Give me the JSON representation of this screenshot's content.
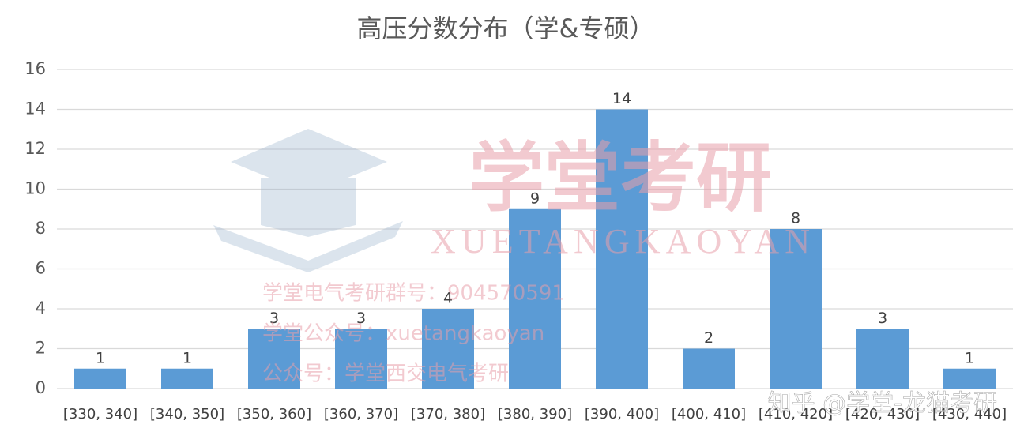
{
  "chart_data": {
    "type": "bar",
    "title": "高压分数分布（学&专硕）",
    "categories": [
      "[330, 340]",
      "[340, 350]",
      "[350, 360]",
      "[360, 370]",
      "[370, 380]",
      "[380, 390]",
      "[390, 400]",
      "[400, 410]",
      "[410, 420]",
      "[420, 430]",
      "[430, 440]"
    ],
    "values": [
      1,
      1,
      3,
      3,
      4,
      9,
      14,
      2,
      8,
      3,
      1
    ],
    "color": "#5b9bd5",
    "ylim": [
      0,
      16
    ],
    "yticks": [
      0,
      2,
      4,
      6,
      8,
      10,
      12,
      14,
      16
    ],
    "grid": true
  },
  "watermarks": {
    "logo": "学堂考研",
    "logo_latin": "XUETANGKAOYAN",
    "lines": [
      "学堂电气考研群号：904570591",
      "学堂公众号：xuetangkaoyan",
      "公众号：学堂西交电气考研"
    ],
    "zhihu": "知乎 @学堂-龙猫考研"
  }
}
